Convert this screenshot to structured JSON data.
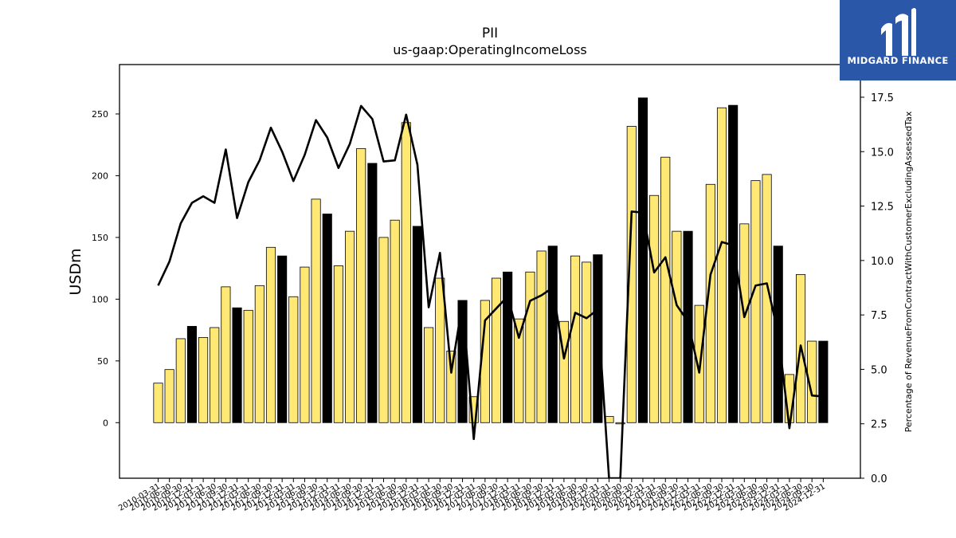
{
  "chart_data": {
    "type": "bar",
    "title": "PII",
    "subtitle": "us-gaap:OperatingIncomeLoss",
    "ylabel": "USDm",
    "y2label": "Percentage of RevenueFromContractWithCustomerExcludingAssessedTax",
    "ylim": [
      -45,
      290
    ],
    "y2lim": [
      0,
      19
    ],
    "yticks": [
      0,
      50,
      100,
      150,
      200,
      250
    ],
    "y2ticks": [
      0.0,
      2.5,
      5.0,
      7.5,
      10.0,
      12.5,
      15.0,
      17.5
    ],
    "categories": [
      "2010-03-31",
      "2010-06-30",
      "2010-09-30",
      "2010-12-31",
      "2011-03-31",
      "2011-06-30",
      "2011-09-30",
      "2011-12-31",
      "2012-03-31",
      "2012-06-30",
      "2012-09-30",
      "2012-12-31",
      "2013-03-31",
      "2013-06-30",
      "2013-09-30",
      "2013-12-31",
      "2014-03-31",
      "2014-06-30",
      "2014-09-30",
      "2014-12-31",
      "2015-03-31",
      "2015-06-30",
      "2015-09-30",
      "2015-12-31",
      "2016-03-31",
      "2016-06-30",
      "2016-09-30",
      "2016-12-31",
      "2017-03-31",
      "2017-06-30",
      "2017-09-30",
      "2017-12-31",
      "2018-03-31",
      "2018-06-30",
      "2018-09-30",
      "2018-12-31",
      "2019-03-31",
      "2019-06-30",
      "2019-09-30",
      "2019-12-31",
      "2020-03-31",
      "2020-06-30",
      "2020-09-30",
      "2020-12-31",
      "2021-03-31",
      "2021-06-30",
      "2021-09-30",
      "2021-12-31",
      "2022-03-31",
      "2022-06-30",
      "2022-09-30",
      "2022-12-31",
      "2023-03-31",
      "2023-06-30",
      "2023-09-30",
      "2023-12-31",
      "2024-03-31",
      "2024-06-30",
      "2024-09-30",
      "2024-12-31"
    ],
    "series": [
      {
        "type": "bar",
        "axis": "left",
        "values": [
          32,
          43,
          68,
          78,
          69,
          77,
          110,
          93,
          91,
          111,
          142,
          135,
          102,
          126,
          181,
          169,
          127,
          155,
          222,
          210,
          150,
          164,
          243,
          159,
          77,
          117,
          58,
          99,
          21,
          99,
          117,
          122,
          84,
          122,
          139,
          143,
          82,
          135,
          130,
          136,
          5,
          -1,
          240,
          263,
          184,
          215,
          155,
          155,
          95,
          193,
          255,
          257,
          161,
          196,
          201,
          143,
          39,
          120,
          66,
          66
        ],
        "is_q4": [
          false,
          false,
          false,
          true,
          false,
          false,
          false,
          true,
          false,
          false,
          false,
          true,
          false,
          false,
          false,
          true,
          false,
          false,
          false,
          true,
          false,
          false,
          false,
          true,
          false,
          false,
          false,
          true,
          false,
          false,
          false,
          true,
          false,
          false,
          false,
          true,
          false,
          false,
          false,
          true,
          false,
          false,
          false,
          true,
          false,
          false,
          false,
          true,
          false,
          false,
          false,
          true,
          false,
          false,
          false,
          true,
          false,
          false,
          false,
          true
        ],
        "color": "#ffe873",
        "q4_color": "#000000"
      },
      {
        "type": "line",
        "axis": "right",
        "color": "#000000",
        "values": [
          8.85,
          9.95,
          11.7,
          12.65,
          12.95,
          12.65,
          15.1,
          11.95,
          13.6,
          14.6,
          16.1,
          15.0,
          13.65,
          14.85,
          16.45,
          15.65,
          14.25,
          15.35,
          17.1,
          16.5,
          14.55,
          14.6,
          16.7,
          14.4,
          7.85,
          10.35,
          4.85,
          8.05,
          1.8,
          7.25,
          7.8,
          8.35,
          6.45,
          8.15,
          8.4,
          8.75,
          5.5,
          7.6,
          7.35,
          7.75,
          0.0,
          0.0,
          12.25,
          12.2,
          9.45,
          10.15,
          7.95,
          7.2,
          4.85,
          9.35,
          10.85,
          10.7,
          7.4,
          8.85,
          8.95,
          6.65,
          2.3,
          6.1,
          3.8,
          3.75
        ]
      }
    ]
  },
  "branding": {
    "logo_text": "MIDGARD FINANCE",
    "logo_color": "#2b57a8"
  }
}
